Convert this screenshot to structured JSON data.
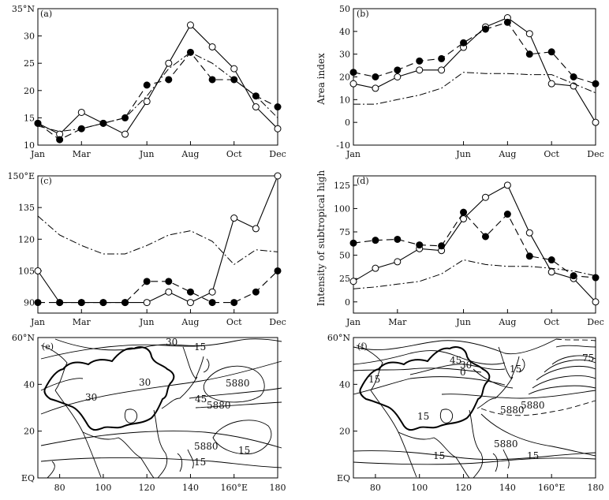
{
  "chart_data": [
    {
      "panel": "(a)",
      "type": "line",
      "x_tick_labels": [
        "Jan",
        "Mar",
        "Jun",
        "Aug",
        "Oct",
        "Dec"
      ],
      "x_tick_months": [
        1,
        3,
        6,
        8,
        10,
        12
      ],
      "ylim": [
        10,
        35
      ],
      "y_ticks": [
        "10",
        "15",
        "20",
        "25",
        "30",
        "35°N"
      ],
      "series": [
        {
          "name": "open-circle",
          "style": "solid",
          "marker": "open",
          "values": [
            14,
            12,
            16,
            14,
            12,
            18,
            25,
            32,
            28,
            24,
            17,
            13
          ]
        },
        {
          "name": "filled-dot",
          "style": "dash",
          "marker": "filled",
          "values": [
            14,
            11,
            13,
            14,
            15,
            21,
            22,
            27,
            22,
            22,
            19,
            17
          ]
        },
        {
          "name": "dash-dot",
          "style": "dashdot",
          "marker": "none",
          "values": [
            13.5,
            12.5,
            13,
            14,
            15,
            19,
            24,
            27,
            25,
            22,
            19,
            15
          ]
        }
      ]
    },
    {
      "panel": "(b)",
      "type": "line",
      "ylabel": "Area index",
      "x_tick_labels": [
        "Jan",
        "Jun",
        "Aug",
        "Oct",
        "Dec"
      ],
      "x_tick_months": [
        1,
        6,
        8,
        10,
        12
      ],
      "ylim": [
        -10,
        50
      ],
      "y_ticks": [
        "-10",
        "0",
        "10",
        "20",
        "30",
        "40",
        "50"
      ],
      "series": [
        {
          "name": "open-circle",
          "style": "solid",
          "marker": "open",
          "values": [
            17,
            15,
            20,
            23,
            23,
            33,
            42,
            46,
            39,
            17,
            16,
            0
          ]
        },
        {
          "name": "filled-dot",
          "style": "dash",
          "marker": "filled",
          "values": [
            22,
            20,
            23,
            27,
            28,
            35,
            41,
            44,
            30,
            31,
            20,
            17
          ]
        },
        {
          "name": "dash-dot",
          "style": "dashdot",
          "marker": "none",
          "values": [
            8,
            8,
            10,
            12,
            15,
            22,
            21.5,
            21.5,
            21,
            21,
            17,
            13
          ]
        }
      ]
    },
    {
      "panel": "(c)",
      "type": "line",
      "x_tick_labels": [
        "Jan",
        "Mar",
        "Jun",
        "Aug",
        "Oct",
        "Dec"
      ],
      "x_tick_months": [
        1,
        3,
        6,
        8,
        10,
        12
      ],
      "ylim": [
        85,
        150
      ],
      "y_ticks": [
        "90",
        "105",
        "120",
        "135",
        "150°E"
      ],
      "series": [
        {
          "name": "open-circle",
          "style": "solid",
          "marker": "open",
          "values": [
            105,
            90,
            90,
            90,
            90,
            90,
            95,
            90,
            95,
            130,
            125,
            150
          ]
        },
        {
          "name": "filled-dot",
          "style": "dash",
          "marker": "filled",
          "values": [
            90,
            90,
            90,
            90,
            90,
            100,
            100,
            95,
            90,
            90,
            95,
            105
          ]
        },
        {
          "name": "dash-dot",
          "style": "dashdot",
          "marker": "none",
          "values": [
            131,
            122,
            117,
            113,
            113,
            117,
            122,
            124,
            119,
            108,
            115,
            114
          ]
        }
      ]
    },
    {
      "panel": "(d)",
      "type": "line",
      "ylabel": "Intensity of subtropical high",
      "x_tick_labels": [
        "Jan",
        "Mar",
        "Jun",
        "Aug",
        "Oct",
        "Dec"
      ],
      "x_tick_months": [
        1,
        3,
        6,
        8,
        10,
        12
      ],
      "ylim": [
        -12,
        135
      ],
      "y_ticks": [
        "0",
        "25",
        "50",
        "75",
        "100",
        "125"
      ],
      "series": [
        {
          "name": "open-circle",
          "style": "solid",
          "marker": "open",
          "values": [
            22,
            36,
            43,
            57,
            55,
            89,
            112,
            125,
            74,
            32,
            25,
            0
          ]
        },
        {
          "name": "filled-dot",
          "style": "dash",
          "marker": "filled",
          "values": [
            63,
            66,
            67,
            61,
            60,
            96,
            70,
            94,
            49,
            45,
            28,
            26
          ]
        },
        {
          "name": "dash-dot",
          "style": "dashdot",
          "marker": "none",
          "values": [
            14,
            16,
            19,
            22,
            30,
            45,
            40,
            38,
            38,
            36,
            33,
            28
          ]
        }
      ]
    },
    {
      "panel": "(e)",
      "type": "contour-map",
      "x_tick_labels": [
        "80",
        "100",
        "120",
        "140",
        "160°E",
        "180"
      ],
      "x_tick_values": [
        80,
        100,
        120,
        140,
        160,
        180
      ],
      "y_tick_labels": [
        "EQ",
        "20",
        "40",
        "60°N"
      ],
      "y_tick_values": [
        0,
        20,
        40,
        60
      ],
      "xlim": [
        70,
        180
      ],
      "ylim": [
        0,
        60
      ],
      "contour_labels": [
        "30",
        "15",
        "30",
        "30",
        "5880",
        "45",
        "5880",
        "5880",
        "15",
        "15"
      ]
    },
    {
      "panel": "(f)",
      "type": "contour-map",
      "x_tick_labels": [
        "80",
        "100",
        "120",
        "140",
        "160°E",
        "180"
      ],
      "x_tick_values": [
        80,
        100,
        120,
        140,
        160,
        180
      ],
      "y_tick_labels": [
        "EQ",
        "20",
        "40",
        "60°N"
      ],
      "y_tick_values": [
        0,
        20,
        40,
        60
      ],
      "xlim": [
        70,
        180
      ],
      "ylim": [
        0,
        60
      ],
      "contour_labels": [
        "45",
        "30",
        "0",
        "15",
        "15",
        "75",
        "15",
        "5880",
        "5880",
        "5880",
        "15",
        "15"
      ]
    }
  ]
}
